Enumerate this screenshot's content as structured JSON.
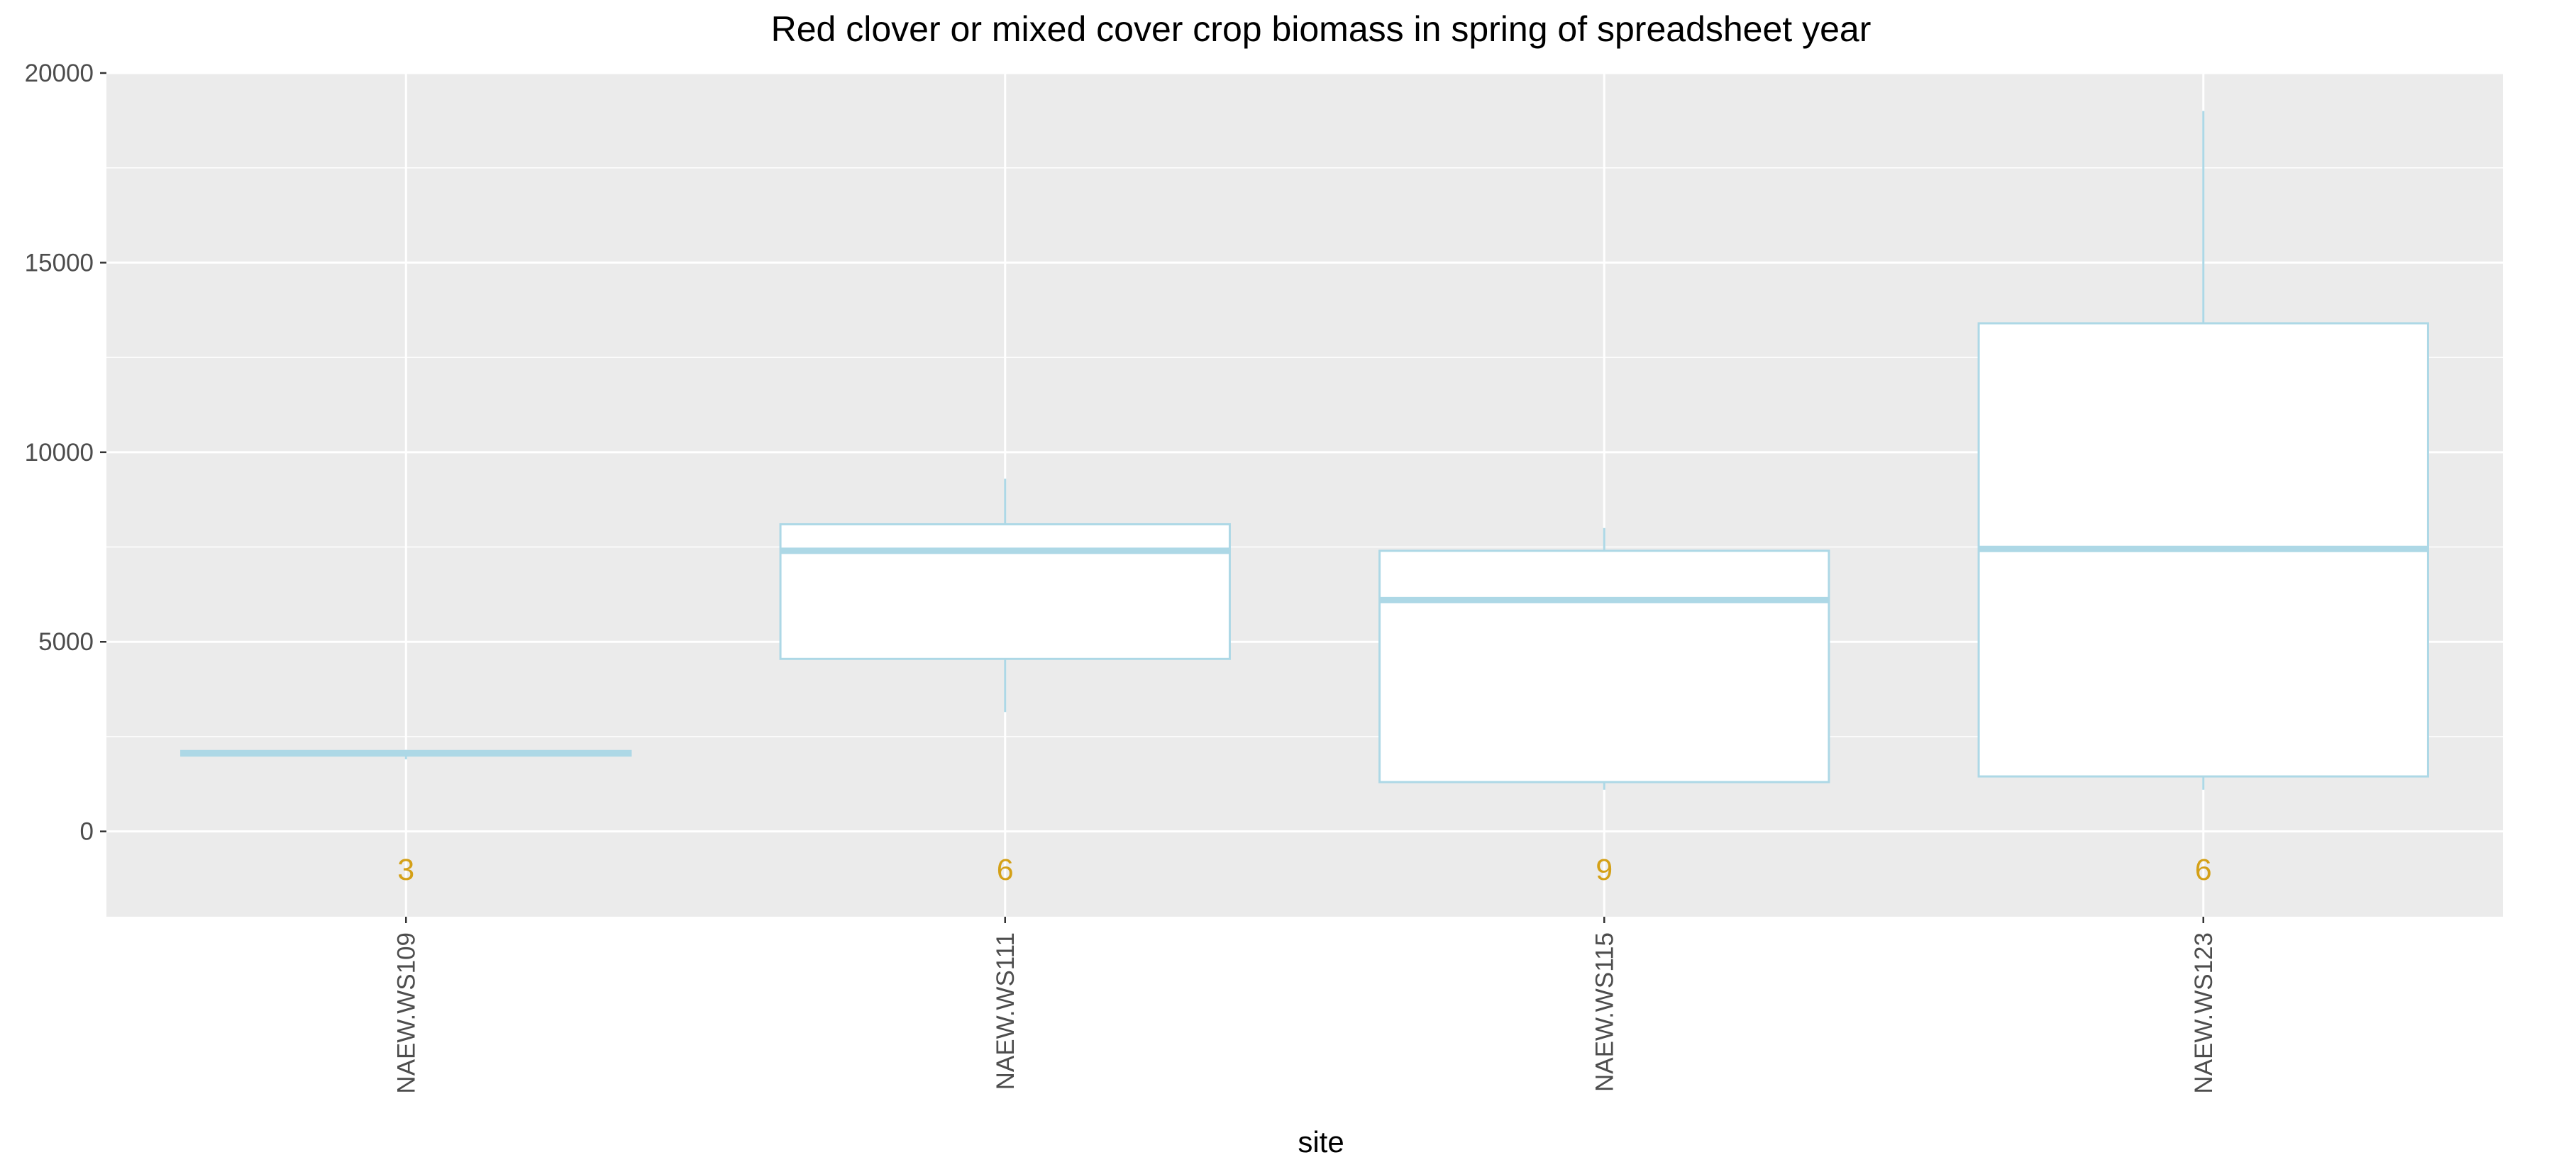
{
  "chart_data": {
    "type": "box",
    "title": "Red clover or mixed cover crop biomass in spring of spreadsheet year",
    "xlabel": "site",
    "ylabel": "",
    "categories": [
      "NAEW.WS109",
      "NAEW.WS111",
      "NAEW.WS115",
      "NAEW.WS123"
    ],
    "boxes": [
      {
        "category": "NAEW.WS109",
        "whisker_low": 1900,
        "q1": 2000,
        "median": 2060,
        "q3": 2120,
        "whisker_high": 2150,
        "n": "3"
      },
      {
        "category": "NAEW.WS111",
        "whisker_low": 3150,
        "q1": 4550,
        "median": 7400,
        "q3": 8100,
        "whisker_high": 9300,
        "n": "6"
      },
      {
        "category": "NAEW.WS115",
        "whisker_low": 1100,
        "q1": 1300,
        "median": 6100,
        "q3": 7400,
        "whisker_high": 8000,
        "n": "9"
      },
      {
        "category": "NAEW.WS123",
        "whisker_low": 1100,
        "q1": 1450,
        "median": 7450,
        "q3": 13400,
        "whisker_high": 19000,
        "n": "6"
      }
    ],
    "ylim": [
      -2250,
      20000
    ],
    "yticks": [
      0,
      5000,
      10000,
      15000,
      20000
    ],
    "ytick_labels": [
      "0",
      "5000",
      "10000",
      "15000",
      "20000"
    ],
    "count_label_y": -1000,
    "grid": true,
    "colors": {
      "panel_background": "#ebebeb",
      "grid": "#ffffff",
      "box_outline": "#add8e6",
      "box_fill": "#ffffff",
      "count_text": "#d4a017",
      "tick_text": "#4d4d4d"
    }
  }
}
